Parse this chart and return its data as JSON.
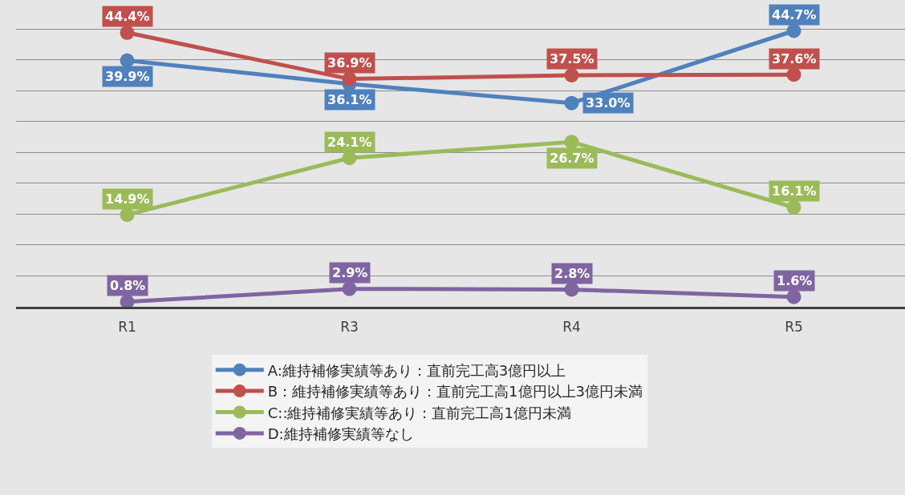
{
  "chart_data": {
    "type": "line",
    "categories": [
      "R1",
      "R3",
      "R4",
      "R5"
    ],
    "series": [
      {
        "name": "A:維持補修実績等あり：直前完工高3億円以上",
        "color": "#4f81bd",
        "values": [
          39.9,
          36.1,
          33.0,
          44.7
        ],
        "value_labels": [
          "39.9%",
          "36.1%",
          "33.0%",
          "44.7%"
        ]
      },
      {
        "name": "B：維持補修実績等あり：直前完工高1億円以上3億円未満",
        "color": "#c0504d",
        "values": [
          44.4,
          36.9,
          37.5,
          37.6
        ],
        "value_labels": [
          "44.4%",
          "36.9%",
          "37.5%",
          "37.6%"
        ]
      },
      {
        "name": "C::維持補修実績等あり：直前完工高1億円未満",
        "color": "#9bbb59",
        "values": [
          14.9,
          24.1,
          26.7,
          16.1
        ],
        "value_labels": [
          "14.9%",
          "24.1%",
          "26.7%",
          "16.1%"
        ]
      },
      {
        "name": "D:維持補修実績等なし",
        "color": "#8064a2",
        "values": [
          0.8,
          2.9,
          2.8,
          1.6
        ],
        "value_labels": [
          "0.8%",
          "2.9%",
          "2.8%",
          "1.6%"
        ]
      }
    ],
    "grid": "y",
    "legend": "bottom",
    "marker": "circle",
    "line_style": "solid",
    "tick_labels": "x"
  }
}
